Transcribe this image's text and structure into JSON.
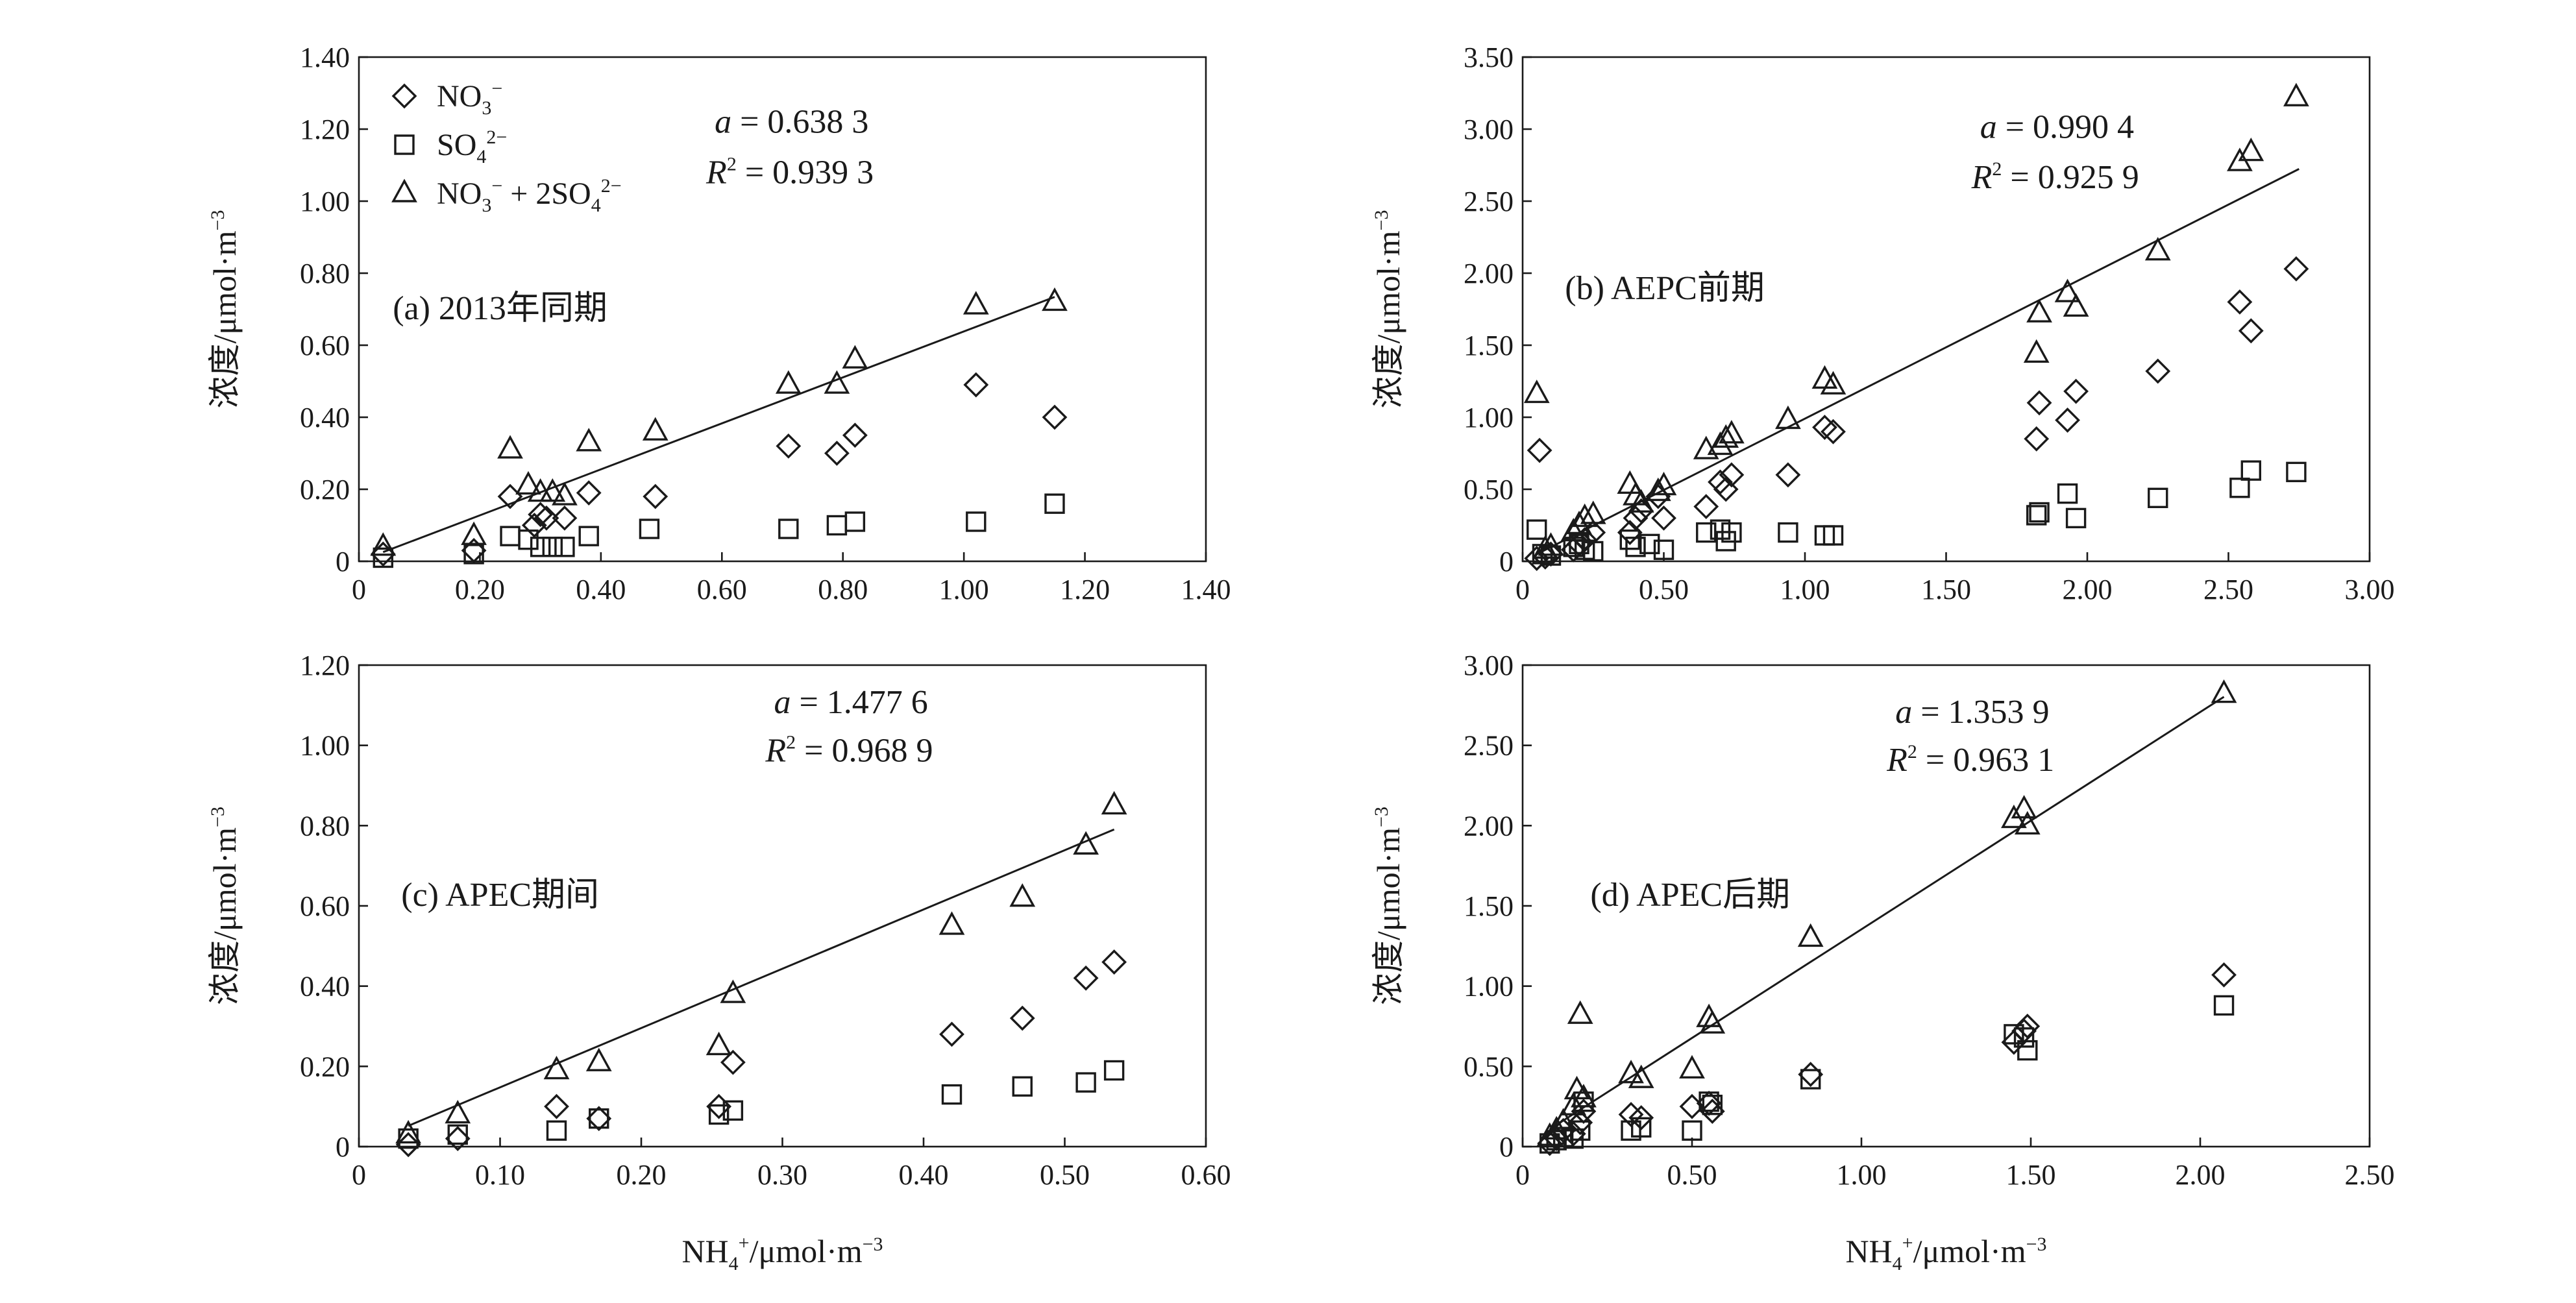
{
  "colors": {
    "ink": "#1a1a1a",
    "background": "#ffffff"
  },
  "legend": {
    "no3": {
      "base": "NO",
      "sub": "3",
      "sup": "−"
    },
    "so4": {
      "base": "SO",
      "sub": "4",
      "sup": "2−"
    },
    "sum": {
      "text": "NO",
      "sub": "3",
      "sup1": "−",
      "mid": " + 2SO",
      "sub2": "4",
      "sup2": "2−"
    }
  },
  "shared": {
    "ylabel": "浓度/μmol·m",
    "ylabel_sup": "−3",
    "xlabel_base": "NH",
    "xlabel_sub": "4",
    "xlabel_sup": "+",
    "xlabel_rest": "/μmol·m",
    "xlabel_sup2": "−3"
  },
  "chart_data": [
    {
      "id": "a",
      "type": "scatter",
      "title": "(a) 2013年同期",
      "a_label": "a",
      "a_value": "= 0.638 3",
      "r2_label": "R",
      "r2_value": "= 0.939 3",
      "xlim": [
        0,
        1.4
      ],
      "ylim": [
        0,
        1.4
      ],
      "xticks": [
        "0",
        "0.20",
        "0.40",
        "0.60",
        "0.80",
        "1.00",
        "1.20",
        "1.40"
      ],
      "yticks": [
        "0",
        "0.20",
        "0.40",
        "0.60",
        "0.80",
        "1.00",
        "1.20",
        "1.40"
      ],
      "fit": {
        "slope": 0.6383,
        "x_range": [
          0.04,
          1.15
        ]
      },
      "series": [
        {
          "name": "NO3−",
          "marker": "diamond",
          "points": [
            [
              0.04,
              0.02
            ],
            [
              0.19,
              0.03
            ],
            [
              0.25,
              0.18
            ],
            [
              0.29,
              0.1
            ],
            [
              0.3,
              0.13
            ],
            [
              0.31,
              0.12
            ],
            [
              0.34,
              0.12
            ],
            [
              0.38,
              0.19
            ],
            [
              0.49,
              0.18
            ],
            [
              0.71,
              0.32
            ],
            [
              0.79,
              0.3
            ],
            [
              0.82,
              0.35
            ],
            [
              1.02,
              0.49
            ],
            [
              1.15,
              0.4
            ]
          ]
        },
        {
          "name": "SO42−",
          "marker": "square",
          "points": [
            [
              0.04,
              0.01
            ],
            [
              0.19,
              0.02
            ],
            [
              0.25,
              0.07
            ],
            [
              0.28,
              0.06
            ],
            [
              0.3,
              0.04
            ],
            [
              0.32,
              0.04
            ],
            [
              0.34,
              0.04
            ],
            [
              0.38,
              0.07
            ],
            [
              0.48,
              0.09
            ],
            [
              0.71,
              0.09
            ],
            [
              0.79,
              0.1
            ],
            [
              0.82,
              0.11
            ],
            [
              1.02,
              0.11
            ],
            [
              1.15,
              0.16
            ]
          ]
        },
        {
          "name": "NO3− + 2SO42−",
          "marker": "triangle",
          "points": [
            [
              0.04,
              0.04
            ],
            [
              0.19,
              0.07
            ],
            [
              0.25,
              0.31
            ],
            [
              0.28,
              0.21
            ],
            [
              0.3,
              0.19
            ],
            [
              0.32,
              0.19
            ],
            [
              0.34,
              0.18
            ],
            [
              0.38,
              0.33
            ],
            [
              0.49,
              0.36
            ],
            [
              0.71,
              0.49
            ],
            [
              0.79,
              0.49
            ],
            [
              0.82,
              0.56
            ],
            [
              1.02,
              0.71
            ],
            [
              1.15,
              0.72
            ]
          ]
        }
      ]
    },
    {
      "id": "b",
      "type": "scatter",
      "title": "(b) AEPC前期",
      "a_label": "a",
      "a_value": "= 0.990 4",
      "r2_label": "R",
      "r2_value": "= 0.925 9",
      "xlim": [
        0,
        3.0
      ],
      "ylim": [
        0,
        3.5
      ],
      "xticks": [
        "0",
        "0.50",
        "1.00",
        "1.50",
        "2.00",
        "2.50",
        "3.00"
      ],
      "yticks": [
        "0",
        "0.50",
        "1.00",
        "1.50",
        "2.00",
        "2.50",
        "3.00",
        "3.50"
      ],
      "fit": {
        "slope": 0.9904,
        "x_range": [
          0.05,
          2.75
        ]
      },
      "series": [
        {
          "name": "NO3−",
          "marker": "diamond",
          "points": [
            [
              0.05,
              0.02
            ],
            [
              0.06,
              0.77
            ],
            [
              0.08,
              0.03
            ],
            [
              0.1,
              0.05
            ],
            [
              0.18,
              0.08
            ],
            [
              0.2,
              0.12
            ],
            [
              0.22,
              0.15
            ],
            [
              0.25,
              0.2
            ],
            [
              0.38,
              0.2
            ],
            [
              0.4,
              0.3
            ],
            [
              0.42,
              0.35
            ],
            [
              0.48,
              0.45
            ],
            [
              0.5,
              0.3
            ],
            [
              0.65,
              0.38
            ],
            [
              0.7,
              0.55
            ],
            [
              0.72,
              0.5
            ],
            [
              0.74,
              0.6
            ],
            [
              0.94,
              0.6
            ],
            [
              1.07,
              0.93
            ],
            [
              1.1,
              0.9
            ],
            [
              1.82,
              0.85
            ],
            [
              1.83,
              1.1
            ],
            [
              1.93,
              0.98
            ],
            [
              1.96,
              1.18
            ],
            [
              2.25,
              1.32
            ],
            [
              2.54,
              1.8
            ],
            [
              2.58,
              1.6
            ],
            [
              2.74,
              2.03
            ]
          ]
        },
        {
          "name": "SO42−",
          "marker": "square",
          "points": [
            [
              0.05,
              0.22
            ],
            [
              0.07,
              0.05
            ],
            [
              0.1,
              0.04
            ],
            [
              0.18,
              0.1
            ],
            [
              0.2,
              0.12
            ],
            [
              0.22,
              0.08
            ],
            [
              0.25,
              0.07
            ],
            [
              0.38,
              0.15
            ],
            [
              0.4,
              0.1
            ],
            [
              0.45,
              0.12
            ],
            [
              0.5,
              0.08
            ],
            [
              0.65,
              0.2
            ],
            [
              0.7,
              0.22
            ],
            [
              0.72,
              0.14
            ],
            [
              0.74,
              0.2
            ],
            [
              0.94,
              0.2
            ],
            [
              1.07,
              0.18
            ],
            [
              1.1,
              0.18
            ],
            [
              1.82,
              0.32
            ],
            [
              1.83,
              0.34
            ],
            [
              1.93,
              0.47
            ],
            [
              1.96,
              0.3
            ],
            [
              2.25,
              0.44
            ],
            [
              2.54,
              0.51
            ],
            [
              2.58,
              0.63
            ],
            [
              2.74,
              0.62
            ]
          ]
        },
        {
          "name": "NO3− + 2SO42−",
          "marker": "triangle",
          "points": [
            [
              0.05,
              1.16
            ],
            [
              0.08,
              0.08
            ],
            [
              0.1,
              0.1
            ],
            [
              0.18,
              0.2
            ],
            [
              0.2,
              0.25
            ],
            [
              0.22,
              0.3
            ],
            [
              0.25,
              0.32
            ],
            [
              0.38,
              0.53
            ],
            [
              0.4,
              0.45
            ],
            [
              0.42,
              0.4
            ],
            [
              0.48,
              0.48
            ],
            [
              0.5,
              0.52
            ],
            [
              0.65,
              0.77
            ],
            [
              0.7,
              0.8
            ],
            [
              0.72,
              0.85
            ],
            [
              0.74,
              0.88
            ],
            [
              0.94,
              0.98
            ],
            [
              1.07,
              1.26
            ],
            [
              1.1,
              1.22
            ],
            [
              1.82,
              1.44
            ],
            [
              1.83,
              1.72
            ],
            [
              1.93,
              1.86
            ],
            [
              1.96,
              1.76
            ],
            [
              2.25,
              2.15
            ],
            [
              2.54,
              2.77
            ],
            [
              2.58,
              2.84
            ],
            [
              2.74,
              3.22
            ]
          ]
        }
      ]
    },
    {
      "id": "c",
      "type": "scatter",
      "title": "(c) APEC期间",
      "a_label": "a",
      "a_value": "= 1.477 6",
      "r2_label": "R",
      "r2_value": "= 0.968 9",
      "xlim": [
        0,
        0.6
      ],
      "ylim": [
        0,
        1.2
      ],
      "xticks": [
        "0",
        "0.10",
        "0.20",
        "0.30",
        "0.40",
        "0.50",
        "0.60"
      ],
      "yticks": [
        "0",
        "0.20",
        "0.40",
        "0.60",
        "0.80",
        "1.00",
        "1.20"
      ],
      "fit": {
        "slope": 1.4776,
        "x_range": [
          0.035,
          0.535
        ]
      },
      "series": [
        {
          "name": "NO3−",
          "marker": "diamond",
          "points": [
            [
              0.035,
              0.005
            ],
            [
              0.07,
              0.02
            ],
            [
              0.14,
              0.1
            ],
            [
              0.17,
              0.07
            ],
            [
              0.255,
              0.1
            ],
            [
              0.265,
              0.21
            ],
            [
              0.42,
              0.28
            ],
            [
              0.47,
              0.32
            ],
            [
              0.515,
              0.42
            ],
            [
              0.535,
              0.46
            ]
          ]
        },
        {
          "name": "SO42−",
          "marker": "square",
          "points": [
            [
              0.035,
              0.02
            ],
            [
              0.07,
              0.03
            ],
            [
              0.14,
              0.04
            ],
            [
              0.17,
              0.07
            ],
            [
              0.255,
              0.08
            ],
            [
              0.265,
              0.09
            ],
            [
              0.42,
              0.13
            ],
            [
              0.47,
              0.15
            ],
            [
              0.515,
              0.16
            ],
            [
              0.535,
              0.19
            ]
          ]
        },
        {
          "name": "NO3− + 2SO42−",
          "marker": "triangle",
          "points": [
            [
              0.035,
              0.03
            ],
            [
              0.07,
              0.08
            ],
            [
              0.14,
              0.19
            ],
            [
              0.17,
              0.21
            ],
            [
              0.255,
              0.25
            ],
            [
              0.265,
              0.38
            ],
            [
              0.42,
              0.55
            ],
            [
              0.47,
              0.62
            ],
            [
              0.515,
              0.75
            ],
            [
              0.535,
              0.85
            ]
          ]
        }
      ]
    },
    {
      "id": "d",
      "type": "scatter",
      "title": "(d) APEC后期",
      "a_label": "a",
      "a_value": "= 1.353 9",
      "r2_label": "R",
      "r2_value": "= 0.963 1",
      "xlim": [
        0,
        2.5
      ],
      "ylim": [
        0,
        3.0
      ],
      "xticks": [
        "0",
        "0.50",
        "1.00",
        "1.50",
        "2.00",
        "2.50"
      ],
      "yticks": [
        "0",
        "0.50",
        "1.00",
        "1.50",
        "2.00",
        "2.50",
        "3.00"
      ],
      "fit": {
        "slope": 1.3539,
        "x_range": [
          0.08,
          2.07
        ]
      },
      "series": [
        {
          "name": "NO3−",
          "marker": "diamond",
          "points": [
            [
              0.08,
              0.02
            ],
            [
              0.1,
              0.05
            ],
            [
              0.12,
              0.1
            ],
            [
              0.15,
              0.08
            ],
            [
              0.17,
              0.15
            ],
            [
              0.18,
              0.22
            ],
            [
              0.32,
              0.2
            ],
            [
              0.35,
              0.18
            ],
            [
              0.5,
              0.25
            ],
            [
              0.55,
              0.27
            ],
            [
              0.56,
              0.22
            ],
            [
              0.85,
              0.45
            ],
            [
              1.45,
              0.65
            ],
            [
              1.48,
              0.72
            ],
            [
              1.49,
              0.75
            ],
            [
              2.07,
              1.07
            ]
          ]
        },
        {
          "name": "SO42−",
          "marker": "square",
          "points": [
            [
              0.08,
              0.02
            ],
            [
              0.1,
              0.04
            ],
            [
              0.12,
              0.06
            ],
            [
              0.15,
              0.05
            ],
            [
              0.17,
              0.1
            ],
            [
              0.18,
              0.28
            ],
            [
              0.32,
              0.1
            ],
            [
              0.35,
              0.12
            ],
            [
              0.5,
              0.1
            ],
            [
              0.55,
              0.28
            ],
            [
              0.56,
              0.26
            ],
            [
              0.85,
              0.42
            ],
            [
              1.45,
              0.7
            ],
            [
              1.48,
              0.68
            ],
            [
              1.49,
              0.6
            ],
            [
              2.07,
              0.88
            ]
          ]
        },
        {
          "name": "NO3− + 2SO42−",
          "marker": "triangle",
          "points": [
            [
              0.08,
              0.06
            ],
            [
              0.1,
              0.1
            ],
            [
              0.12,
              0.15
            ],
            [
              0.15,
              0.25
            ],
            [
              0.16,
              0.35
            ],
            [
              0.17,
              0.82
            ],
            [
              0.18,
              0.3
            ],
            [
              0.32,
              0.45
            ],
            [
              0.35,
              0.42
            ],
            [
              0.5,
              0.48
            ],
            [
              0.55,
              0.8
            ],
            [
              0.56,
              0.76
            ],
            [
              0.85,
              1.3
            ],
            [
              1.45,
              2.04
            ],
            [
              1.48,
              2.1
            ],
            [
              1.49,
              2.0
            ],
            [
              2.07,
              2.82
            ]
          ]
        }
      ]
    }
  ]
}
